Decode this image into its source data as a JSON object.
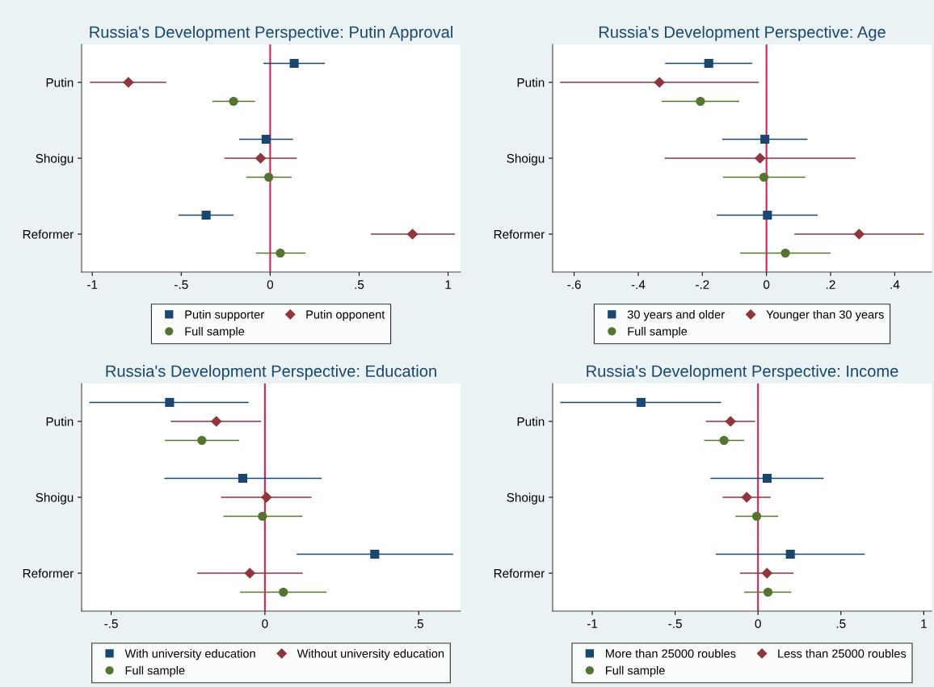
{
  "chart_data": [
    {
      "type": "scatter",
      "orientation": "horizontal",
      "title": "Russia's Development Perspective: Putin Approval",
      "categories": [
        "Putin",
        "Shoigu",
        "Reformer"
      ],
      "xlim": [
        -1.06,
        1.07
      ],
      "xticks": [
        {
          "value": -1,
          "label": "-1"
        },
        {
          "value": -0.5,
          "label": "-.5"
        },
        0,
        {
          "value": 0.5,
          "label": ".5"
        },
        1
      ],
      "grid": false,
      "legend": "bottom",
      "ref_lines": [
        {
          "axis": "x",
          "value": 0,
          "color": "#d62050"
        }
      ],
      "series": [
        {
          "name": "Putin supporter",
          "color": "#1a476f",
          "marker": "square",
          "values": [
            0.135,
            -0.023,
            -0.36
          ],
          "errors": [
            [
              -0.038,
              0.307
            ],
            [
              -0.175,
              0.129
            ],
            [
              -0.516,
              -0.206
            ]
          ]
        },
        {
          "name": "Putin opponent",
          "color": "#90353b",
          "marker": "diamond",
          "values": [
            -0.797,
            -0.054,
            0.8
          ],
          "errors": [
            [
              -1.013,
              -0.584
            ],
            [
              -0.257,
              0.15
            ],
            [
              0.566,
              1.038
            ]
          ]
        },
        {
          "name": "Full sample",
          "color": "#55752f",
          "marker": "circle",
          "values": [
            -0.206,
            -0.008,
            0.057
          ],
          "errors": [
            [
              -0.325,
              -0.085
            ],
            [
              -0.135,
              0.12
            ],
            [
              -0.08,
              0.198
            ]
          ]
        }
      ]
    },
    {
      "type": "scatter",
      "orientation": "horizontal",
      "title": "Russia's Development Perspective: Age",
      "categories": [
        "Putin",
        "Shoigu",
        "Reformer"
      ],
      "xlim": [
        -0.667,
        0.515
      ],
      "xticks": [
        {
          "value": -0.6,
          "label": "-.6"
        },
        {
          "value": -0.4,
          "label": "-.4"
        },
        {
          "value": -0.2,
          "label": "-.2"
        },
        0,
        {
          "value": 0.2,
          "label": ".2"
        },
        {
          "value": 0.4,
          "label": ".4"
        }
      ],
      "grid": false,
      "legend": "bottom",
      "ref_lines": [
        {
          "axis": "x",
          "value": 0,
          "color": "#d62050"
        }
      ],
      "series": [
        {
          "name": "30 years and older",
          "color": "#1a476f",
          "marker": "square",
          "values": [
            -0.18,
            -0.005,
            0.003
          ],
          "errors": [
            [
              -0.316,
              -0.044
            ],
            [
              -0.138,
              0.128
            ],
            [
              -0.155,
              0.16
            ]
          ]
        },
        {
          "name": "Younger than 30 years",
          "color": "#90353b",
          "marker": "diamond",
          "values": [
            -0.334,
            -0.02,
            0.289
          ],
          "errors": [
            [
              -0.644,
              -0.024
            ],
            [
              -0.318,
              0.278
            ],
            [
              0.087,
              0.491
            ]
          ]
        },
        {
          "name": "Full sample",
          "color": "#55752f",
          "marker": "circle",
          "values": [
            -0.206,
            -0.008,
            0.059
          ],
          "errors": [
            [
              -0.327,
              -0.085
            ],
            [
              -0.136,
              0.121
            ],
            [
              -0.082,
              0.2
            ]
          ]
        }
      ]
    },
    {
      "type": "scatter",
      "orientation": "horizontal",
      "title": "Russia's Development Perspective: Education",
      "categories": [
        "Putin",
        "Shoigu",
        "Reformer"
      ],
      "xlim": [
        -0.596,
        0.636
      ],
      "xticks": [
        {
          "value": -0.5,
          "label": "-.5"
        },
        0,
        {
          "value": 0.5,
          "label": ".5"
        }
      ],
      "grid": false,
      "legend": "bottom",
      "ref_lines": [
        {
          "axis": "x",
          "value": 0,
          "color": "#d62050"
        }
      ],
      "series": [
        {
          "name": "With university education",
          "color": "#1a476f",
          "marker": "square",
          "values": [
            -0.31,
            -0.072,
            0.357
          ],
          "errors": [
            [
              -0.571,
              -0.053
            ],
            [
              -0.327,
              0.184
            ],
            [
              0.103,
              0.612
            ]
          ]
        },
        {
          "name": "Without university education",
          "color": "#90353b",
          "marker": "diamond",
          "values": [
            -0.158,
            0.005,
            -0.049
          ],
          "errors": [
            [
              -0.306,
              -0.012
            ],
            [
              -0.143,
              0.152
            ],
            [
              -0.22,
              0.123
            ]
          ]
        },
        {
          "name": "Full sample",
          "color": "#55752f",
          "marker": "circle",
          "values": [
            -0.205,
            -0.008,
            0.06
          ],
          "errors": [
            [
              -0.325,
              -0.084
            ],
            [
              -0.135,
              0.122
            ],
            [
              -0.081,
              0.2
            ]
          ]
        }
      ]
    },
    {
      "type": "scatter",
      "orientation": "horizontal",
      "title": "Russia's Development Perspective: Income",
      "categories": [
        "Putin",
        "Shoigu",
        "Reformer"
      ],
      "xlim": [
        -1.239,
        1.047
      ],
      "xticks": [
        {
          "value": -1,
          "label": "-1"
        },
        {
          "value": -0.5,
          "label": "-.5"
        },
        0,
        {
          "value": 0.5,
          "label": ".5"
        },
        1
      ],
      "grid": false,
      "legend": "bottom",
      "ref_lines": [
        {
          "axis": "x",
          "value": 0,
          "color": "#d62050"
        }
      ],
      "series": [
        {
          "name": "More than 25000 roubles",
          "color": "#1a476f",
          "marker": "square",
          "values": [
            -0.706,
            0.055,
            0.195
          ],
          "errors": [
            [
              -1.193,
              -0.222
            ],
            [
              -0.287,
              0.396
            ],
            [
              -0.255,
              0.644
            ]
          ]
        },
        {
          "name": "Less than 25000 roubles",
          "color": "#90353b",
          "marker": "diamond",
          "values": [
            -0.166,
            -0.068,
            0.054
          ],
          "errors": [
            [
              -0.315,
              -0.018
            ],
            [
              -0.214,
              0.076
            ],
            [
              -0.109,
              0.214
            ]
          ]
        },
        {
          "name": "Full sample",
          "color": "#55752f",
          "marker": "circle",
          "values": [
            -0.205,
            -0.008,
            0.06
          ],
          "errors": [
            [
              -0.325,
              -0.084
            ],
            [
              -0.136,
              0.121
            ],
            [
              -0.083,
              0.2
            ]
          ]
        }
      ]
    }
  ]
}
